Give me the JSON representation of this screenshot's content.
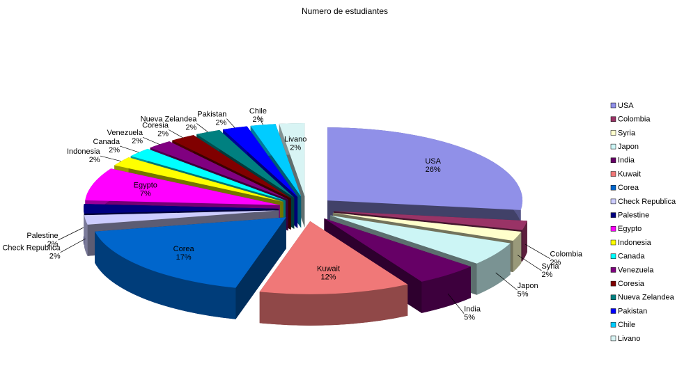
{
  "chart_data": {
    "type": "pie",
    "title": "Numero de estudiantes",
    "categories": [
      "USA",
      "Colombia",
      "Syria",
      "Japon",
      "India",
      "Kuwait",
      "Corea",
      "Check Republica",
      "Palestine",
      "Egypto",
      "Indonesia",
      "Canada",
      "Venezuela",
      "Coresia",
      "Nueva Zelandea",
      "Pakistan",
      "Chile",
      "Livano"
    ],
    "values": [
      26,
      2,
      2,
      5,
      5,
      12,
      17,
      2,
      2,
      7,
      2,
      2,
      2,
      2,
      2,
      2,
      2,
      2
    ],
    "value_labels": [
      "26%",
      "2%",
      "2%",
      "5%",
      "5%",
      "12%",
      "17%",
      "2%",
      "2%",
      "7%",
      "2%",
      "2%",
      "2%",
      "2%",
      "2%",
      "2%",
      "2%",
      "2%"
    ],
    "colors": [
      "#9090e8",
      "#993366",
      "#ffffcc",
      "#ccf5f5",
      "#660066",
      "#f07878",
      "#0066cc",
      "#ccccff",
      "#000080",
      "#ff00ff",
      "#ffff00",
      "#00ffff",
      "#800080",
      "#800000",
      "#008080",
      "#0000ff",
      "#00ccff",
      "#d8f4f4"
    ],
    "legend": "right"
  }
}
